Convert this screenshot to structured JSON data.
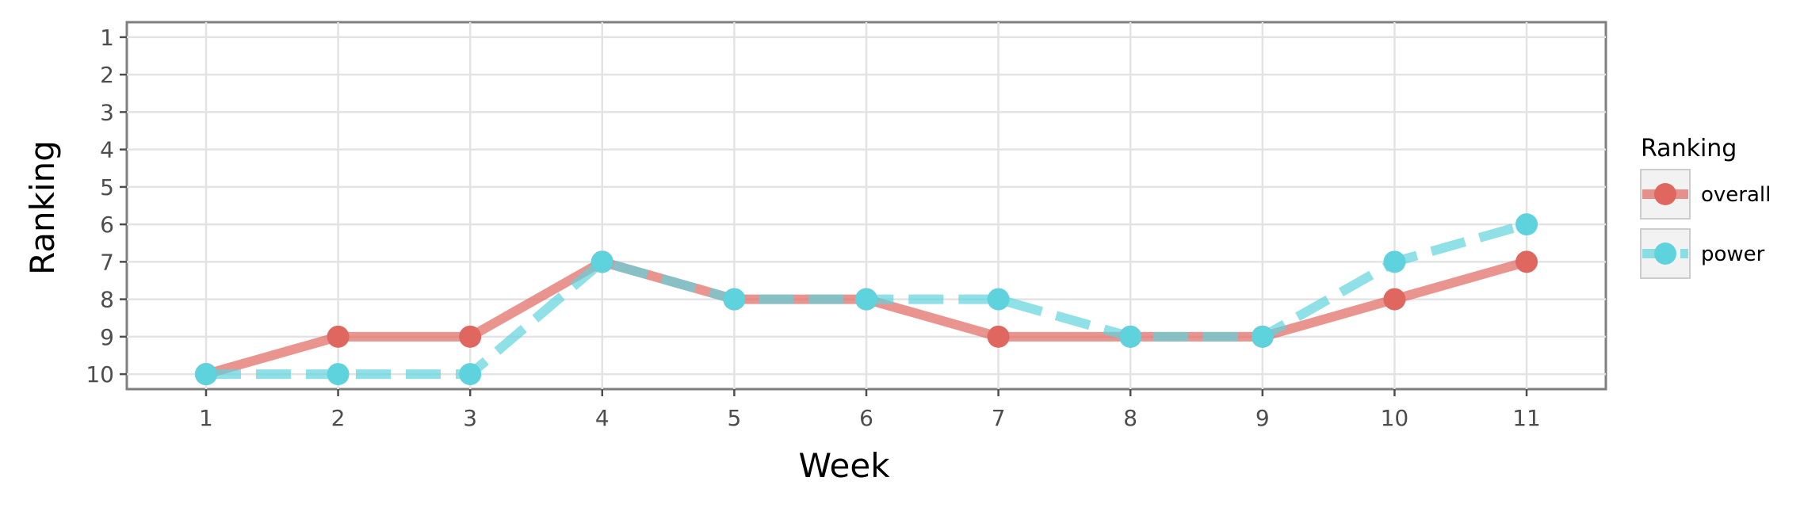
{
  "chart_data": {
    "type": "line",
    "xlabel": "Week",
    "ylabel": "Ranking",
    "x": [
      1,
      2,
      3,
      4,
      5,
      6,
      7,
      8,
      9,
      10,
      11
    ],
    "x_ticks": [
      "1",
      "2",
      "3",
      "4",
      "5",
      "6",
      "7",
      "8",
      "9",
      "10",
      "11"
    ],
    "y_ticks": [
      "1",
      "2",
      "3",
      "4",
      "5",
      "6",
      "7",
      "8",
      "9",
      "10"
    ],
    "xlim": [
      0.4,
      11.6
    ],
    "ylim": [
      10.4,
      0.6
    ],
    "y_reversed": true,
    "grid": true,
    "legend": {
      "title": "Ranking",
      "position": "right"
    },
    "series": [
      {
        "name": "overall",
        "values": [
          10,
          9,
          9,
          7,
          8,
          8,
          9,
          9,
          9,
          8,
          7
        ],
        "color": "#e06660",
        "line_style": "solid"
      },
      {
        "name": "power",
        "values": [
          10,
          10,
          10,
          7,
          8,
          8,
          8,
          9,
          9,
          7,
          6
        ],
        "color": "#5fd3dd",
        "line_style": "dashed"
      }
    ]
  }
}
